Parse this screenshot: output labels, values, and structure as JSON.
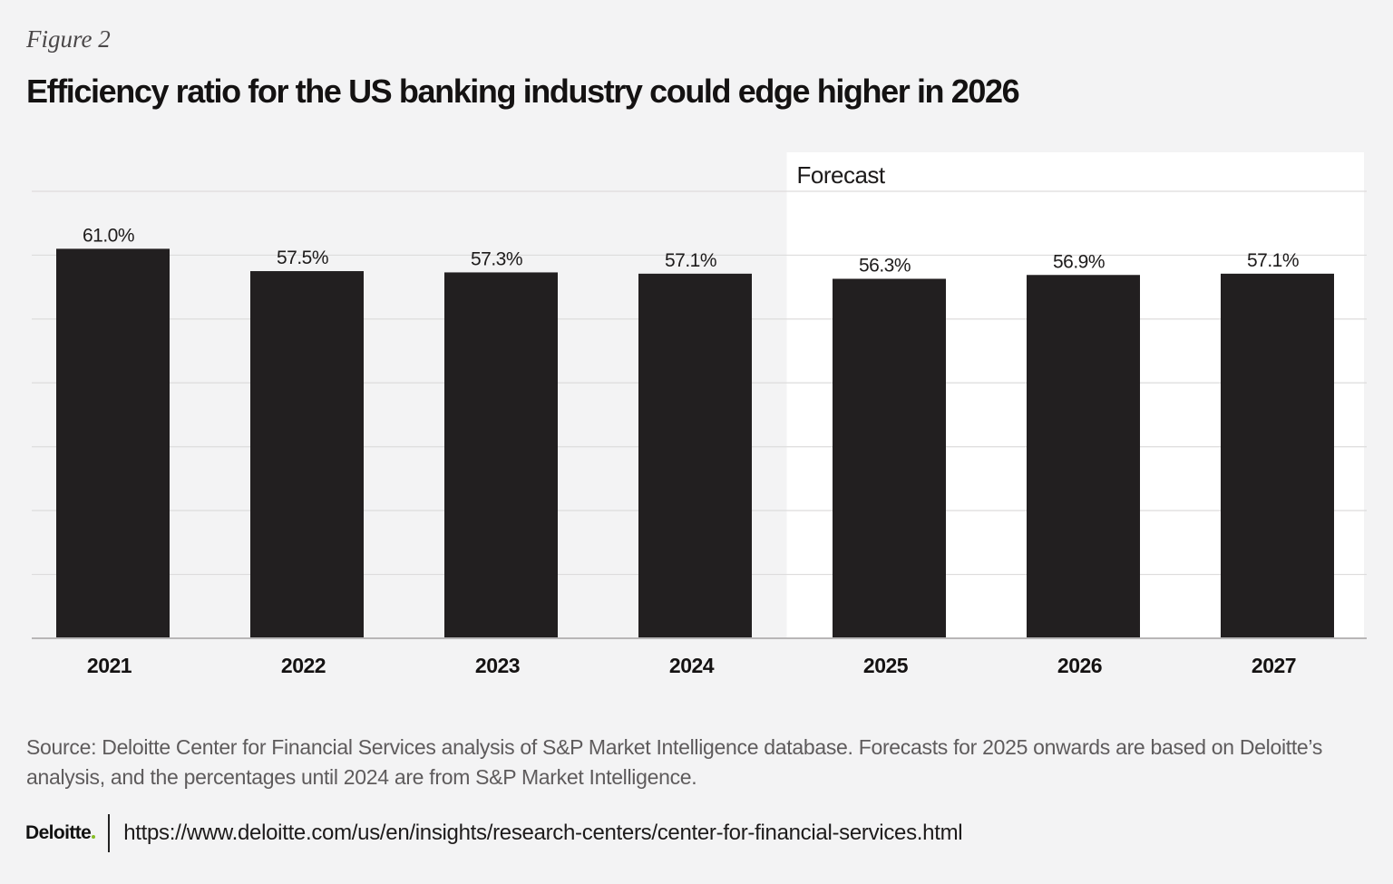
{
  "figure_label": "Figure 2",
  "title": "Efficiency ratio for the US banking industry could edge higher in 2026",
  "chart_data": {
    "type": "bar",
    "categories": [
      "2021",
      "2022",
      "2023",
      "2024",
      "2025",
      "2026",
      "2027"
    ],
    "values": [
      61.0,
      57.5,
      57.3,
      57.1,
      56.3,
      56.9,
      57.1
    ],
    "value_labels": [
      "61.0%",
      "57.5%",
      "57.3%",
      "57.1%",
      "56.3%",
      "56.9%",
      "57.1%"
    ],
    "forecast_label": "Forecast",
    "forecast_start_index": 4,
    "ylim": [
      0,
      70
    ],
    "grid": true,
    "bar_color": "#221f20",
    "forecast_background": "#ffffff"
  },
  "source": "Source: Deloitte Center for Financial Services analysis of S&P Market Intelligence database. Forecasts for 2025 onwards are based on Deloitte’s analysis, and the percentages until 2024 are from S&P Market Intelligence.",
  "footer": {
    "brand": "Deloitte",
    "brand_dot_color": "#86bc25",
    "url": "https://www.deloitte.com/us/en/insights/research-centers/center-for-financial-services.html"
  }
}
